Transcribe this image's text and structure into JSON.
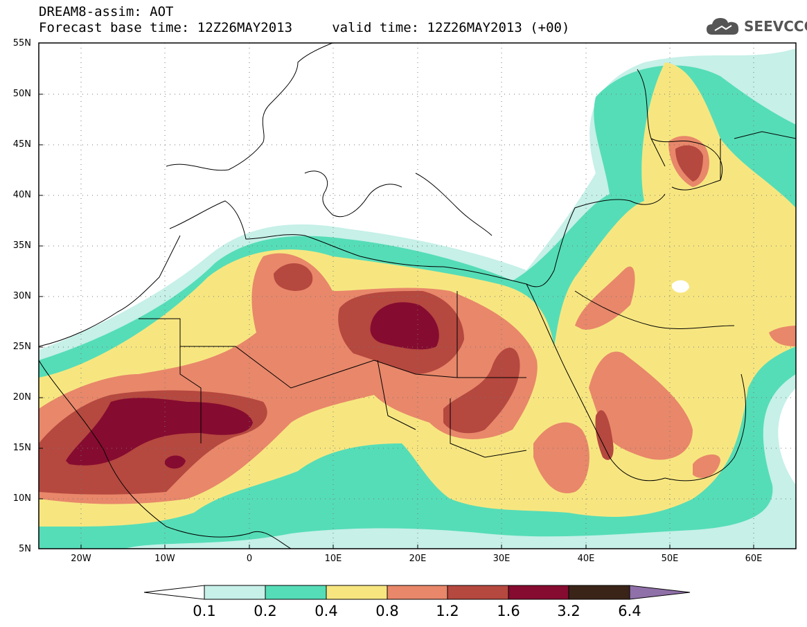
{
  "header": {
    "title_line1": "DREAM8-assim: AOT",
    "title_line2": "Forecast base time: 12Z26MAY2013     valid time: 12Z26MAY2013 (+00)",
    "logo_text": "SEEVCCC"
  },
  "axes": {
    "lat_labels": [
      "55N",
      "50N",
      "45N",
      "40N",
      "35N",
      "30N",
      "25N",
      "20N",
      "15N",
      "10N",
      "5N"
    ],
    "lon_labels": [
      "20W",
      "10W",
      "0",
      "10E",
      "20E",
      "30E",
      "40E",
      "50E",
      "60E"
    ]
  },
  "colorbar": {
    "labels": [
      "0.1",
      "0.2",
      "0.4",
      "0.8",
      "1.2",
      "1.6",
      "3.2",
      "6.4"
    ],
    "colors": [
      "#ffffff",
      "#c6f0e8",
      "#55ddb7",
      "#f7e680",
      "#e8876a",
      "#b5483f",
      "#860b30",
      "#3a2418",
      "#9070a8"
    ]
  },
  "map": {
    "variable": "AOT",
    "extent": {
      "lon": [
        -25,
        65
      ],
      "lat": [
        5,
        55
      ]
    },
    "palette": {
      "ocean": "#ffffff",
      "border": "#000000"
    }
  }
}
